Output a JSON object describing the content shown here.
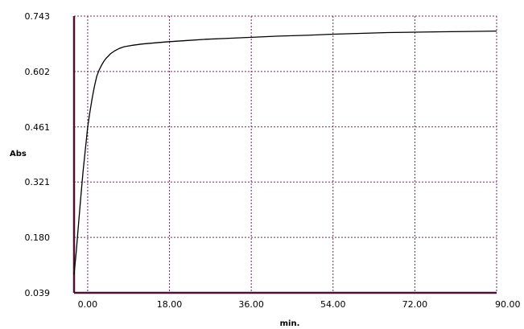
{
  "chart_data": {
    "type": "line",
    "title": "",
    "xlabel": "min.",
    "ylabel": "Abs",
    "xlim": [
      -3,
      90
    ],
    "ylim": [
      0.039,
      0.743
    ],
    "xticks": [
      0,
      18,
      36,
      54,
      72,
      90
    ],
    "xtick_labels": [
      "0.00",
      "18.00",
      "36.00",
      "54.00",
      "72.00",
      "90.00"
    ],
    "yticks": [
      0.039,
      0.18,
      0.321,
      0.461,
      0.602,
      0.743
    ],
    "ytick_labels": [
      "0.039",
      "0.180",
      "0.321",
      "0.461",
      "0.602",
      "0.743"
    ],
    "grid": true,
    "line_color": "#000000",
    "grid_color": "#6b2a5a",
    "axis_color": "#4a1238",
    "series": [
      {
        "x": [
          -3.0,
          -2.5,
          -2.0,
          -1.5,
          -1.0,
          -0.5,
          0.0,
          0.5,
          1.0,
          1.5,
          2.0,
          2.5,
          3.0,
          3.5,
          4.0,
          5.0,
          6.0,
          7.0,
          8.0,
          9.0,
          10.0,
          12.0,
          14.0,
          16.0,
          18.0,
          22.0,
          26.0,
          30.0,
          36.0,
          42.0,
          48.0,
          54.0,
          60.0,
          66.0,
          72.0,
          78.0,
          84.0,
          90.0
        ],
        "y": [
          0.085,
          0.145,
          0.215,
          0.285,
          0.35,
          0.405,
          0.46,
          0.5,
          0.535,
          0.565,
          0.59,
          0.605,
          0.617,
          0.627,
          0.635,
          0.647,
          0.655,
          0.661,
          0.665,
          0.667,
          0.669,
          0.672,
          0.674,
          0.676,
          0.678,
          0.681,
          0.684,
          0.686,
          0.689,
          0.692,
          0.694,
          0.697,
          0.699,
          0.701,
          0.702,
          0.703,
          0.704,
          0.705
        ]
      }
    ]
  }
}
